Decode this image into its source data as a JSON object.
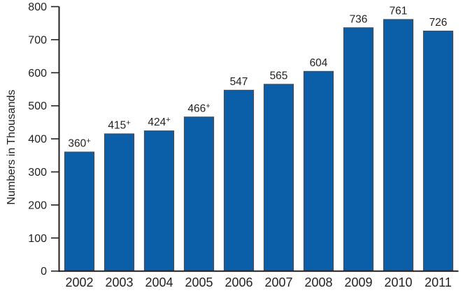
{
  "chart_data": {
    "type": "bar",
    "categories": [
      "2002",
      "2003",
      "2004",
      "2005",
      "2006",
      "2007",
      "2008",
      "2009",
      "2010",
      "2011"
    ],
    "values": [
      360,
      415,
      424,
      466,
      547,
      565,
      604,
      736,
      761,
      726
    ],
    "data_labels": [
      "360",
      "415",
      "424",
      "466",
      "547",
      "565",
      "604",
      "736",
      "761",
      "726"
    ],
    "data_label_superscripts": [
      "+",
      "+",
      "+",
      "+",
      "",
      "",
      "",
      "",
      "",
      ""
    ],
    "title": "",
    "xlabel": "",
    "ylabel": "Numbers in Thousands",
    "ylim": [
      0,
      800
    ],
    "ytick_interval": 100,
    "ytick_labels": [
      "0",
      "100",
      "200",
      "300",
      "400",
      "500",
      "600",
      "700",
      "800"
    ],
    "grid": false,
    "legend": null,
    "bar_color": "#0b5fa9",
    "bar_border_color": "#4a4a4c",
    "axis_color": "#231f20",
    "text_color": "#231f20"
  }
}
